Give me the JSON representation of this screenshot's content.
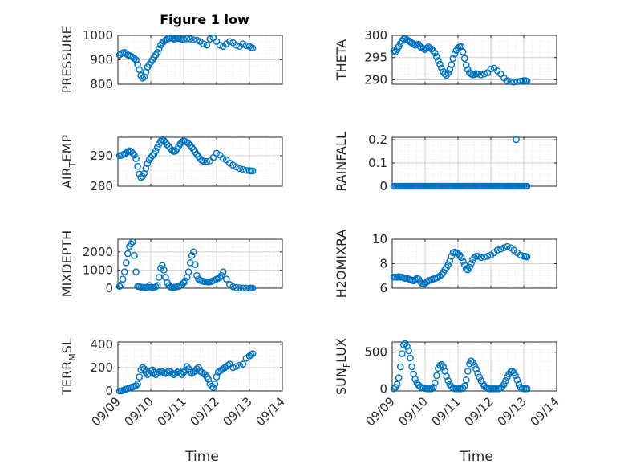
{
  "figure": {
    "title": "Figure 1 low",
    "xlabel": "Time",
    "xticks": [
      "09/09",
      "09/10",
      "09/11",
      "09/12",
      "09/13",
      "09/14"
    ]
  },
  "colors": {
    "marker": "#0072BD",
    "grid": "#dcdcdc",
    "axis": "#262626"
  },
  "chart_data": [
    {
      "type": "scatter",
      "title": "Figure 1 low",
      "ylabel": "PRESSURE",
      "ylabel_sub": "",
      "ylabel_tail": "",
      "xlim": [
        0,
        5
      ],
      "ylim": [
        800,
        1000
      ],
      "yticks": [
        800,
        900,
        1000
      ],
      "grid": true,
      "x": [
        0.05,
        0.1,
        0.15,
        0.2,
        0.25,
        0.3,
        0.35,
        0.4,
        0.45,
        0.5,
        0.55,
        0.6,
        0.65,
        0.7,
        0.75,
        0.8,
        0.85,
        0.9,
        0.95,
        1.0,
        1.05,
        1.1,
        1.15,
        1.2,
        1.25,
        1.3,
        1.35,
        1.4,
        1.45,
        1.5,
        1.55,
        1.6,
        1.65,
        1.7,
        1.75,
        1.8,
        1.85,
        1.9,
        1.95,
        2.0,
        2.1,
        2.2,
        2.3,
        2.4,
        2.5,
        2.6,
        2.7,
        2.8,
        2.9,
        3.0,
        3.1,
        3.2,
        3.3,
        3.4,
        3.5,
        3.6,
        3.7,
        3.8,
        3.9,
        4.0,
        4.05,
        4.1
      ],
      "y": [
        920,
        925,
        928,
        930,
        925,
        920,
        918,
        915,
        910,
        905,
        900,
        880,
        860,
        835,
        825,
        830,
        850,
        870,
        880,
        890,
        900,
        910,
        920,
        930,
        945,
        960,
        970,
        975,
        980,
        985,
        988,
        990,
        988,
        985,
        986,
        988,
        987,
        985,
        983,
        984,
        986,
        985,
        982,
        980,
        975,
        965,
        960,
        985,
        990,
        975,
        960,
        955,
        965,
        975,
        970,
        960,
        955,
        965,
        958,
        955,
        950,
        948
      ]
    },
    {
      "type": "scatter",
      "ylabel": "THETA",
      "ylabel_sub": "",
      "ylabel_tail": "",
      "xlim": [
        0,
        5
      ],
      "ylim": [
        289,
        300
      ],
      "yticks": [
        290,
        295,
        300
      ],
      "grid": true,
      "x": [
        0.05,
        0.1,
        0.15,
        0.2,
        0.25,
        0.3,
        0.35,
        0.4,
        0.45,
        0.5,
        0.55,
        0.6,
        0.65,
        0.7,
        0.75,
        0.8,
        0.85,
        0.9,
        0.95,
        1.0,
        1.05,
        1.1,
        1.15,
        1.2,
        1.25,
        1.3,
        1.35,
        1.4,
        1.45,
        1.5,
        1.55,
        1.6,
        1.65,
        1.7,
        1.75,
        1.8,
        1.85,
        1.9,
        1.95,
        2.0,
        2.05,
        2.1,
        2.15,
        2.2,
        2.25,
        2.3,
        2.35,
        2.4,
        2.45,
        2.5,
        2.55,
        2.6,
        2.7,
        2.8,
        2.9,
        3.0,
        3.1,
        3.2,
        3.3,
        3.4,
        3.5,
        3.6,
        3.7,
        3.8,
        3.9,
        4.0,
        4.05,
        4.1
      ],
      "y": [
        296.5,
        296.3,
        296.8,
        297.5,
        298.2,
        298.8,
        299.2,
        299.3,
        299.0,
        298.8,
        298.5,
        298.3,
        298.0,
        297.8,
        297.9,
        298.0,
        297.5,
        297.2,
        297.0,
        296.8,
        297.1,
        297.4,
        297.2,
        296.9,
        296.5,
        296.0,
        295.2,
        294.3,
        293.5,
        292.6,
        291.8,
        291.3,
        291.0,
        291.5,
        292.3,
        293.4,
        294.8,
        295.8,
        296.6,
        297.2,
        297.4,
        297.5,
        296.3,
        294.8,
        293.3,
        292.3,
        291.6,
        291.3,
        291.1,
        291.2,
        291.4,
        291.3,
        291.1,
        291.3,
        291.6,
        292.4,
        292.6,
        292.0,
        291.3,
        290.4,
        289.8,
        289.6,
        289.5,
        289.6,
        289.7,
        289.8,
        289.8,
        289.7
      ]
    },
    {
      "type": "scatter",
      "ylabel": "AIR",
      "ylabel_sub": "T",
      "ylabel_tail": "EMP",
      "xlim": [
        0,
        5
      ],
      "ylim": [
        280,
        296
      ],
      "yticks": [
        280,
        290
      ],
      "grid": true,
      "x": [
        0.05,
        0.1,
        0.15,
        0.2,
        0.25,
        0.3,
        0.35,
        0.4,
        0.45,
        0.5,
        0.55,
        0.6,
        0.65,
        0.7,
        0.75,
        0.8,
        0.85,
        0.9,
        0.95,
        1.0,
        1.05,
        1.1,
        1.15,
        1.2,
        1.25,
        1.3,
        1.35,
        1.4,
        1.45,
        1.5,
        1.55,
        1.6,
        1.65,
        1.7,
        1.75,
        1.8,
        1.85,
        1.9,
        1.95,
        2.0,
        2.05,
        2.1,
        2.15,
        2.2,
        2.25,
        2.3,
        2.35,
        2.4,
        2.45,
        2.5,
        2.55,
        2.6,
        2.7,
        2.8,
        2.9,
        3.0,
        3.1,
        3.2,
        3.3,
        3.4,
        3.5,
        3.6,
        3.7,
        3.8,
        3.9,
        4.0,
        4.05,
        4.1
      ],
      "y": [
        290.0,
        290.1,
        290.3,
        290.5,
        290.9,
        291.4,
        291.6,
        291.3,
        290.8,
        290.2,
        289.0,
        286.5,
        284.0,
        282.8,
        283.2,
        284.2,
        285.8,
        287.4,
        288.6,
        289.4,
        290.0,
        290.6,
        291.6,
        292.7,
        293.8,
        294.7,
        295.2,
        294.9,
        294.3,
        293.6,
        293.0,
        292.3,
        291.7,
        291.4,
        291.5,
        292.2,
        293.1,
        293.9,
        294.5,
        294.8,
        294.6,
        294.3,
        293.9,
        293.4,
        292.7,
        292.0,
        291.2,
        290.4,
        289.7,
        289.0,
        288.5,
        288.2,
        288.1,
        288.3,
        289.4,
        290.8,
        290.2,
        289.1,
        288.6,
        287.6,
        286.9,
        286.3,
        285.8,
        285.5,
        285.2,
        285.1,
        285.0,
        285.0
      ]
    },
    {
      "type": "scatter",
      "ylabel": "RAINFALL",
      "ylabel_sub": "",
      "ylabel_tail": "",
      "xlim": [
        0,
        5
      ],
      "ylim": [
        0,
        0.21
      ],
      "yticks": [
        0,
        0.1,
        0.2
      ],
      "ytick_labels": [
        "0",
        "0.1",
        "0.2"
      ],
      "grid": true,
      "x": [
        0.05,
        0.1,
        0.15,
        0.2,
        0.25,
        0.3,
        0.35,
        0.4,
        0.45,
        0.5,
        0.55,
        0.6,
        0.65,
        0.7,
        0.75,
        0.8,
        0.85,
        0.9,
        0.95,
        1.0,
        1.05,
        1.1,
        1.15,
        1.2,
        1.25,
        1.3,
        1.35,
        1.4,
        1.45,
        1.5,
        1.55,
        1.6,
        1.65,
        1.7,
        1.75,
        1.8,
        1.85,
        1.9,
        1.95,
        2.0,
        2.05,
        2.1,
        2.15,
        2.2,
        2.25,
        2.3,
        2.35,
        2.4,
        2.45,
        2.5,
        2.55,
        2.6,
        2.65,
        2.7,
        2.75,
        2.8,
        2.85,
        2.9,
        2.95,
        3.0,
        3.05,
        3.1,
        3.15,
        3.2,
        3.25,
        3.3,
        3.35,
        3.4,
        3.45,
        3.5,
        3.55,
        3.6,
        3.65,
        3.7,
        3.75,
        3.8,
        3.85,
        3.9,
        3.95,
        4.0,
        4.05,
        4.1,
        3.77
      ],
      "y": [
        0,
        0,
        0,
        0,
        0,
        0,
        0,
        0,
        0,
        0,
        0,
        0,
        0,
        0,
        0,
        0,
        0,
        0,
        0,
        0,
        0,
        0,
        0,
        0,
        0,
        0,
        0,
        0,
        0,
        0,
        0,
        0,
        0,
        0,
        0,
        0,
        0,
        0,
        0,
        0,
        0,
        0,
        0,
        0,
        0,
        0,
        0,
        0,
        0,
        0,
        0,
        0,
        0,
        0,
        0,
        0,
        0,
        0,
        0,
        0,
        0,
        0,
        0,
        0,
        0,
        0,
        0,
        0,
        0,
        0,
        0,
        0,
        0,
        0,
        0,
        0,
        0,
        0,
        0,
        0,
        0,
        0,
        0.2
      ]
    },
    {
      "type": "scatter",
      "ylabel": "MIXDEPTH",
      "ylabel_sub": "",
      "ylabel_tail": "",
      "xlim": [
        0,
        5
      ],
      "ylim": [
        0,
        2700
      ],
      "yticks": [
        0,
        1000,
        2000
      ],
      "grid": true,
      "x": [
        0.05,
        0.1,
        0.15,
        0.2,
        0.25,
        0.3,
        0.35,
        0.4,
        0.45,
        0.5,
        0.55,
        0.6,
        0.65,
        0.7,
        0.75,
        0.8,
        0.85,
        0.9,
        0.95,
        1.0,
        1.05,
        1.1,
        1.15,
        1.2,
        1.25,
        1.3,
        1.35,
        1.4,
        1.45,
        1.5,
        1.55,
        1.6,
        1.65,
        1.7,
        1.75,
        1.8,
        1.85,
        1.9,
        1.95,
        2.0,
        2.05,
        2.1,
        2.15,
        2.2,
        2.25,
        2.3,
        2.35,
        2.4,
        2.45,
        2.5,
        2.55,
        2.6,
        2.65,
        2.7,
        2.75,
        2.8,
        2.85,
        2.9,
        2.95,
        3.0,
        3.05,
        3.1,
        3.15,
        3.2,
        3.3,
        3.4,
        3.5,
        3.6,
        3.7,
        3.8,
        3.9,
        4.0,
        4.05,
        4.1
      ],
      "y": [
        100,
        200,
        500,
        900,
        1400,
        1900,
        2300,
        2450,
        2550,
        1800,
        900,
        100,
        80,
        60,
        50,
        40,
        30,
        60,
        150,
        50,
        30,
        40,
        80,
        150,
        600,
        1100,
        1250,
        1000,
        600,
        300,
        150,
        60,
        40,
        50,
        60,
        80,
        100,
        150,
        200,
        300,
        400,
        600,
        900,
        1400,
        1800,
        2000,
        1300,
        700,
        500,
        450,
        400,
        380,
        360,
        350,
        340,
        350,
        380,
        420,
        450,
        500,
        550,
        600,
        700,
        900,
        500,
        200,
        80,
        40,
        20,
        10,
        5,
        5,
        5,
        5
      ]
    },
    {
      "type": "scatter",
      "ylabel": "H2OMIXRA",
      "ylabel_sub": "",
      "ylabel_tail": "",
      "xlim": [
        0,
        5
      ],
      "ylim": [
        6,
        10
      ],
      "yticks": [
        6,
        8,
        10
      ],
      "grid": true,
      "x": [
        0.05,
        0.1,
        0.15,
        0.2,
        0.25,
        0.3,
        0.35,
        0.4,
        0.45,
        0.5,
        0.55,
        0.6,
        0.65,
        0.7,
        0.75,
        0.8,
        0.85,
        0.9,
        0.95,
        1.0,
        1.05,
        1.1,
        1.15,
        1.2,
        1.25,
        1.3,
        1.35,
        1.4,
        1.45,
        1.5,
        1.55,
        1.6,
        1.65,
        1.7,
        1.75,
        1.8,
        1.85,
        1.9,
        1.95,
        2.0,
        2.05,
        2.1,
        2.15,
        2.2,
        2.25,
        2.3,
        2.35,
        2.4,
        2.45,
        2.5,
        2.55,
        2.6,
        2.7,
        2.8,
        2.9,
        3.0,
        3.1,
        3.2,
        3.3,
        3.4,
        3.5,
        3.6,
        3.7,
        3.8,
        3.9,
        4.0,
        4.05,
        4.1
      ],
      "y": [
        6.9,
        6.9,
        6.9,
        6.95,
        6.9,
        6.9,
        6.85,
        6.8,
        6.8,
        6.75,
        6.7,
        6.65,
        6.6,
        6.7,
        6.8,
        6.75,
        6.55,
        6.4,
        6.35,
        6.4,
        6.5,
        6.6,
        6.65,
        6.7,
        6.75,
        6.8,
        6.85,
        6.9,
        7.0,
        7.1,
        7.3,
        7.5,
        7.7,
        7.9,
        8.2,
        8.6,
        8.9,
        8.95,
        8.9,
        8.8,
        8.7,
        8.5,
        8.2,
        7.9,
        7.6,
        7.5,
        7.7,
        8.0,
        8.3,
        8.5,
        8.6,
        8.6,
        8.5,
        8.55,
        8.6,
        8.7,
        8.9,
        9.1,
        9.2,
        9.3,
        9.4,
        9.3,
        9.1,
        8.9,
        8.7,
        8.6,
        8.6,
        8.55
      ]
    },
    {
      "type": "scatter",
      "ylabel": "TERR",
      "ylabel_sub": "M",
      "ylabel_tail": "SL",
      "xlim": [
        0,
        5
      ],
      "ylim": [
        0,
        420
      ],
      "yticks": [
        0,
        200,
        400
      ],
      "grid": true,
      "x": [
        0.05,
        0.1,
        0.15,
        0.2,
        0.25,
        0.3,
        0.35,
        0.4,
        0.45,
        0.5,
        0.55,
        0.6,
        0.65,
        0.7,
        0.75,
        0.8,
        0.85,
        0.9,
        0.95,
        1.0,
        1.05,
        1.1,
        1.15,
        1.2,
        1.25,
        1.3,
        1.35,
        1.4,
        1.45,
        1.5,
        1.55,
        1.6,
        1.65,
        1.7,
        1.75,
        1.8,
        1.85,
        1.9,
        1.95,
        2.0,
        2.05,
        2.1,
        2.15,
        2.2,
        2.25,
        2.3,
        2.35,
        2.4,
        2.45,
        2.5,
        2.55,
        2.6,
        2.65,
        2.7,
        2.75,
        2.8,
        2.85,
        2.9,
        2.95,
        3.0,
        3.05,
        3.1,
        3.15,
        3.2,
        3.25,
        3.3,
        3.35,
        3.4,
        3.5,
        3.6,
        3.7,
        3.8,
        3.9,
        4.0,
        4.05,
        4.1
      ],
      "y": [
        0,
        0,
        5,
        10,
        15,
        20,
        25,
        30,
        35,
        40,
        45,
        60,
        120,
        180,
        200,
        190,
        160,
        140,
        150,
        170,
        180,
        160,
        140,
        150,
        160,
        170,
        165,
        155,
        150,
        160,
        170,
        165,
        150,
        140,
        150,
        160,
        170,
        150,
        140,
        160,
        180,
        210,
        190,
        160,
        150,
        160,
        170,
        190,
        200,
        170,
        160,
        150,
        140,
        120,
        100,
        60,
        40,
        30,
        60,
        120,
        160,
        170,
        180,
        190,
        200,
        210,
        220,
        230,
        200,
        210,
        220,
        230,
        280,
        300,
        310,
        320
      ]
    },
    {
      "type": "scatter",
      "ylabel": "SUN",
      "ylabel_sub": "F",
      "ylabel_tail": "LUX",
      "xlim": [
        0,
        5
      ],
      "ylim": [
        -30,
        640
      ],
      "yticks": [
        0,
        500
      ],
      "grid": true,
      "x": [
        0.05,
        0.1,
        0.15,
        0.2,
        0.25,
        0.3,
        0.35,
        0.4,
        0.45,
        0.5,
        0.55,
        0.6,
        0.65,
        0.7,
        0.75,
        0.8,
        0.85,
        0.9,
        0.95,
        1.0,
        1.05,
        1.1,
        1.15,
        1.2,
        1.25,
        1.3,
        1.35,
        1.4,
        1.45,
        1.5,
        1.55,
        1.6,
        1.65,
        1.7,
        1.75,
        1.8,
        1.85,
        1.9,
        1.95,
        2.0,
        2.05,
        2.1,
        2.15,
        2.2,
        2.25,
        2.3,
        2.35,
        2.4,
        2.45,
        2.5,
        2.55,
        2.6,
        2.65,
        2.7,
        2.75,
        2.8,
        2.85,
        2.9,
        2.95,
        3.0,
        3.05,
        3.1,
        3.15,
        3.2,
        3.25,
        3.3,
        3.35,
        3.4,
        3.45,
        3.5,
        3.55,
        3.6,
        3.65,
        3.7,
        3.75,
        3.8,
        3.85,
        3.9,
        3.95,
        4.0,
        4.05,
        4.1
      ],
      "y": [
        0,
        20,
        60,
        150,
        300,
        480,
        600,
        620,
        580,
        520,
        420,
        300,
        200,
        130,
        80,
        50,
        30,
        15,
        10,
        5,
        0,
        0,
        0,
        0,
        20,
        80,
        180,
        280,
        320,
        330,
        300,
        240,
        170,
        110,
        60,
        30,
        10,
        0,
        0,
        0,
        0,
        0,
        10,
        40,
        120,
        240,
        340,
        380,
        360,
        320,
        270,
        210,
        160,
        110,
        70,
        40,
        15,
        5,
        0,
        0,
        0,
        0,
        0,
        0,
        0,
        10,
        30,
        60,
        110,
        160,
        200,
        230,
        240,
        220,
        180,
        120,
        60,
        20,
        5,
        0,
        0,
        0
      ]
    }
  ]
}
